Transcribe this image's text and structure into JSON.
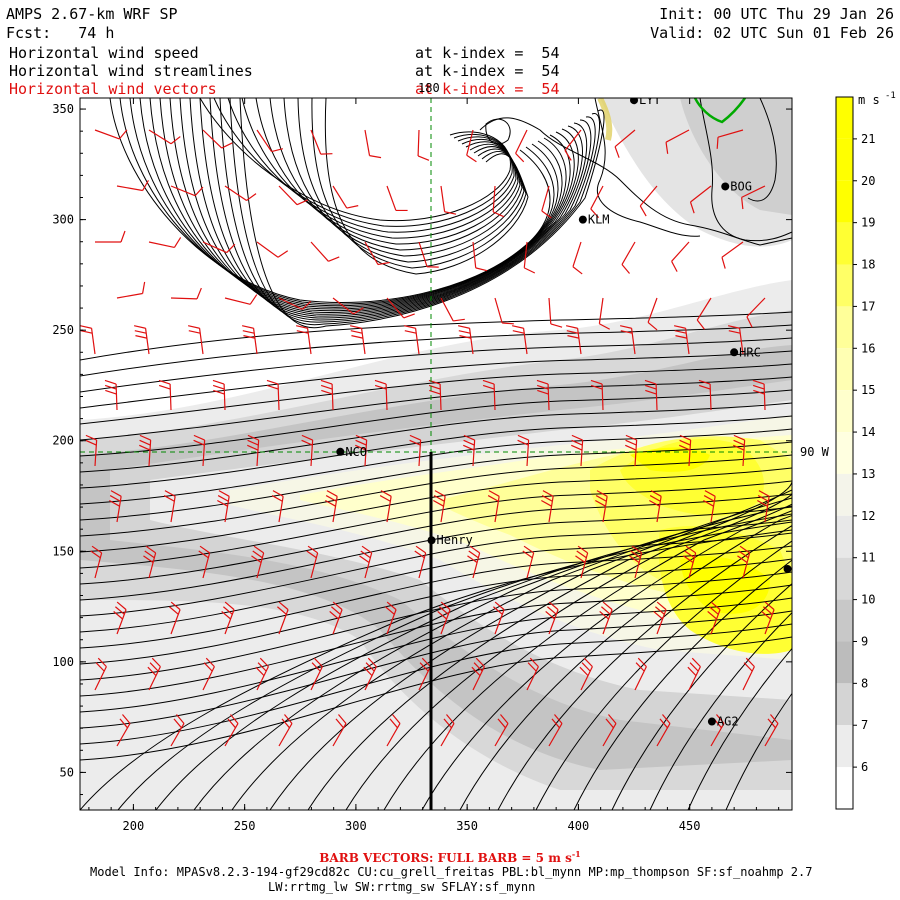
{
  "header": {
    "model_line": "AMPS 2.67-km WRF SP",
    "forecast_line": "Fcst:   74 h",
    "init_line": "Init: 00 UTC Thu 29 Jan 26",
    "valid_line": "Valid: 02 UTC Sun 01 Feb 26"
  },
  "fields": [
    {
      "name": "Horizontal wind speed",
      "level": "at k-index =  54",
      "color": "#000000"
    },
    {
      "name": "Horizontal wind streamlines",
      "level": "at k-index =  54",
      "color": "#000000"
    },
    {
      "name": "Horizontal wind vectors",
      "level": "at k-index =  54",
      "color": "#e01010"
    }
  ],
  "x_axis": {
    "ticks": [
      "200",
      "250",
      "300",
      "350",
      "400",
      "450"
    ],
    "range": [
      176,
      496
    ]
  },
  "y_axis": {
    "ticks": [
      "50",
      "100",
      "150",
      "200",
      "250",
      "300",
      "350"
    ],
    "range": [
      33,
      355
    ]
  },
  "colorbar": {
    "unit": "m s",
    "unit_exp": "-1",
    "labels": [
      "21",
      "20",
      "19",
      "18",
      "17",
      "16",
      "15",
      "14",
      "13",
      "12",
      "11",
      "10",
      "9",
      "8",
      "7",
      "6"
    ],
    "colors": [
      "#ffff00",
      "#ffff00",
      "#ffff00",
      "#ffff33",
      "#ffff66",
      "#ffff99",
      "#ffffb3",
      "#ffffcc",
      "#ffffe0",
      "#f4f4ea",
      "#e8e8e8",
      "#d8d8d8",
      "#c8c8c8",
      "#bcbcbc",
      "#d4d4d4",
      "#ececec",
      "#ffffff"
    ]
  },
  "map_labels": {
    "lon_180": "180",
    "lon_90w": "90 W"
  },
  "stations": [
    {
      "name": "LYT",
      "x": 425,
      "y": 354
    },
    {
      "name": "BOG",
      "x": 466,
      "y": 315
    },
    {
      "name": "KLM",
      "x": 402,
      "y": 300
    },
    {
      "name": "HRC",
      "x": 470,
      "y": 240
    },
    {
      "name": "NCO",
      "x": 293,
      "y": 195
    },
    {
      "name": "Henry",
      "x": 334,
      "y": 155
    },
    {
      "name": "",
      "x": 494,
      "y": 142
    },
    {
      "name": "AG2",
      "x": 460,
      "y": 73
    }
  ],
  "barb_note": "BARB VECTORS:  FULL BARB = 5 m s",
  "barb_note_exp": "-1",
  "model_info_1": "Model Info: MPASv8.2.3-194-gf29cd82c CU:cu_grell_freitas PBL:bl_mynn MP:mp_thompson SF:sf_noahmp 2.7",
  "model_info_2": "LW:rrtmg_lw SW:rrtmg_sw SFLAY:sf_mynn"
}
